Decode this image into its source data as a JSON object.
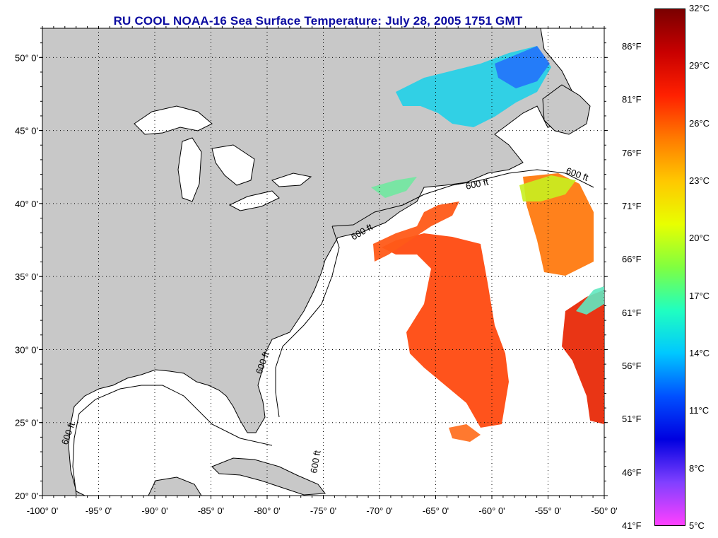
{
  "title": "RU COOL  NOAA-16  Sea Surface Temperature:  July 28, 2005 1751 GMT",
  "map": {
    "lon_range": [
      -100,
      -50
    ],
    "lat_range": [
      20,
      52
    ],
    "lon_ticks": [
      {
        "value": -100,
        "label": "-100° 0'"
      },
      {
        "value": -95,
        "label": "-95° 0'"
      },
      {
        "value": -90,
        "label": "-90° 0'"
      },
      {
        "value": -85,
        "label": "-85° 0'"
      },
      {
        "value": -80,
        "label": "-80° 0'"
      },
      {
        "value": -75,
        "label": "-75° 0'"
      },
      {
        "value": -70,
        "label": "-70° 0'"
      },
      {
        "value": -65,
        "label": "-65° 0'"
      },
      {
        "value": -60,
        "label": "-60° 0'"
      },
      {
        "value": -55,
        "label": "-55° 0'"
      },
      {
        "value": -50,
        "label": "-50° 0'"
      }
    ],
    "lat_ticks": [
      {
        "value": 20,
        "label": "20° 0'"
      },
      {
        "value": 25,
        "label": "25° 0'"
      },
      {
        "value": 30,
        "label": "30° 0'"
      },
      {
        "value": 35,
        "label": "35° 0'"
      },
      {
        "value": 40,
        "label": "40° 0'"
      },
      {
        "value": 45,
        "label": "45° 0'"
      },
      {
        "value": 50,
        "label": "50° 0'"
      }
    ],
    "land_color": "#c8c8c8",
    "ocean_color": "#ffffff",
    "contour_label": "600 ft"
  },
  "colorbar": {
    "celsius_labels": [
      "32°C",
      "29°C",
      "26°C",
      "23°C",
      "20°C",
      "17°C",
      "14°C",
      "11°C",
      "8°C",
      "5°C"
    ],
    "fahrenheit_labels": [
      "86°F",
      "81°F",
      "76°F",
      "71°F",
      "66°F",
      "61°F",
      "56°F",
      "51°F",
      "46°F",
      "41°F"
    ],
    "stops": [
      "#7a0000",
      "#c80000",
      "#ff2000",
      "#ff7a00",
      "#ffc800",
      "#e8ff00",
      "#80ff40",
      "#20ffc0",
      "#00c8ff",
      "#0050ff",
      "#0000e0",
      "#8040ff",
      "#ff40ff"
    ]
  }
}
